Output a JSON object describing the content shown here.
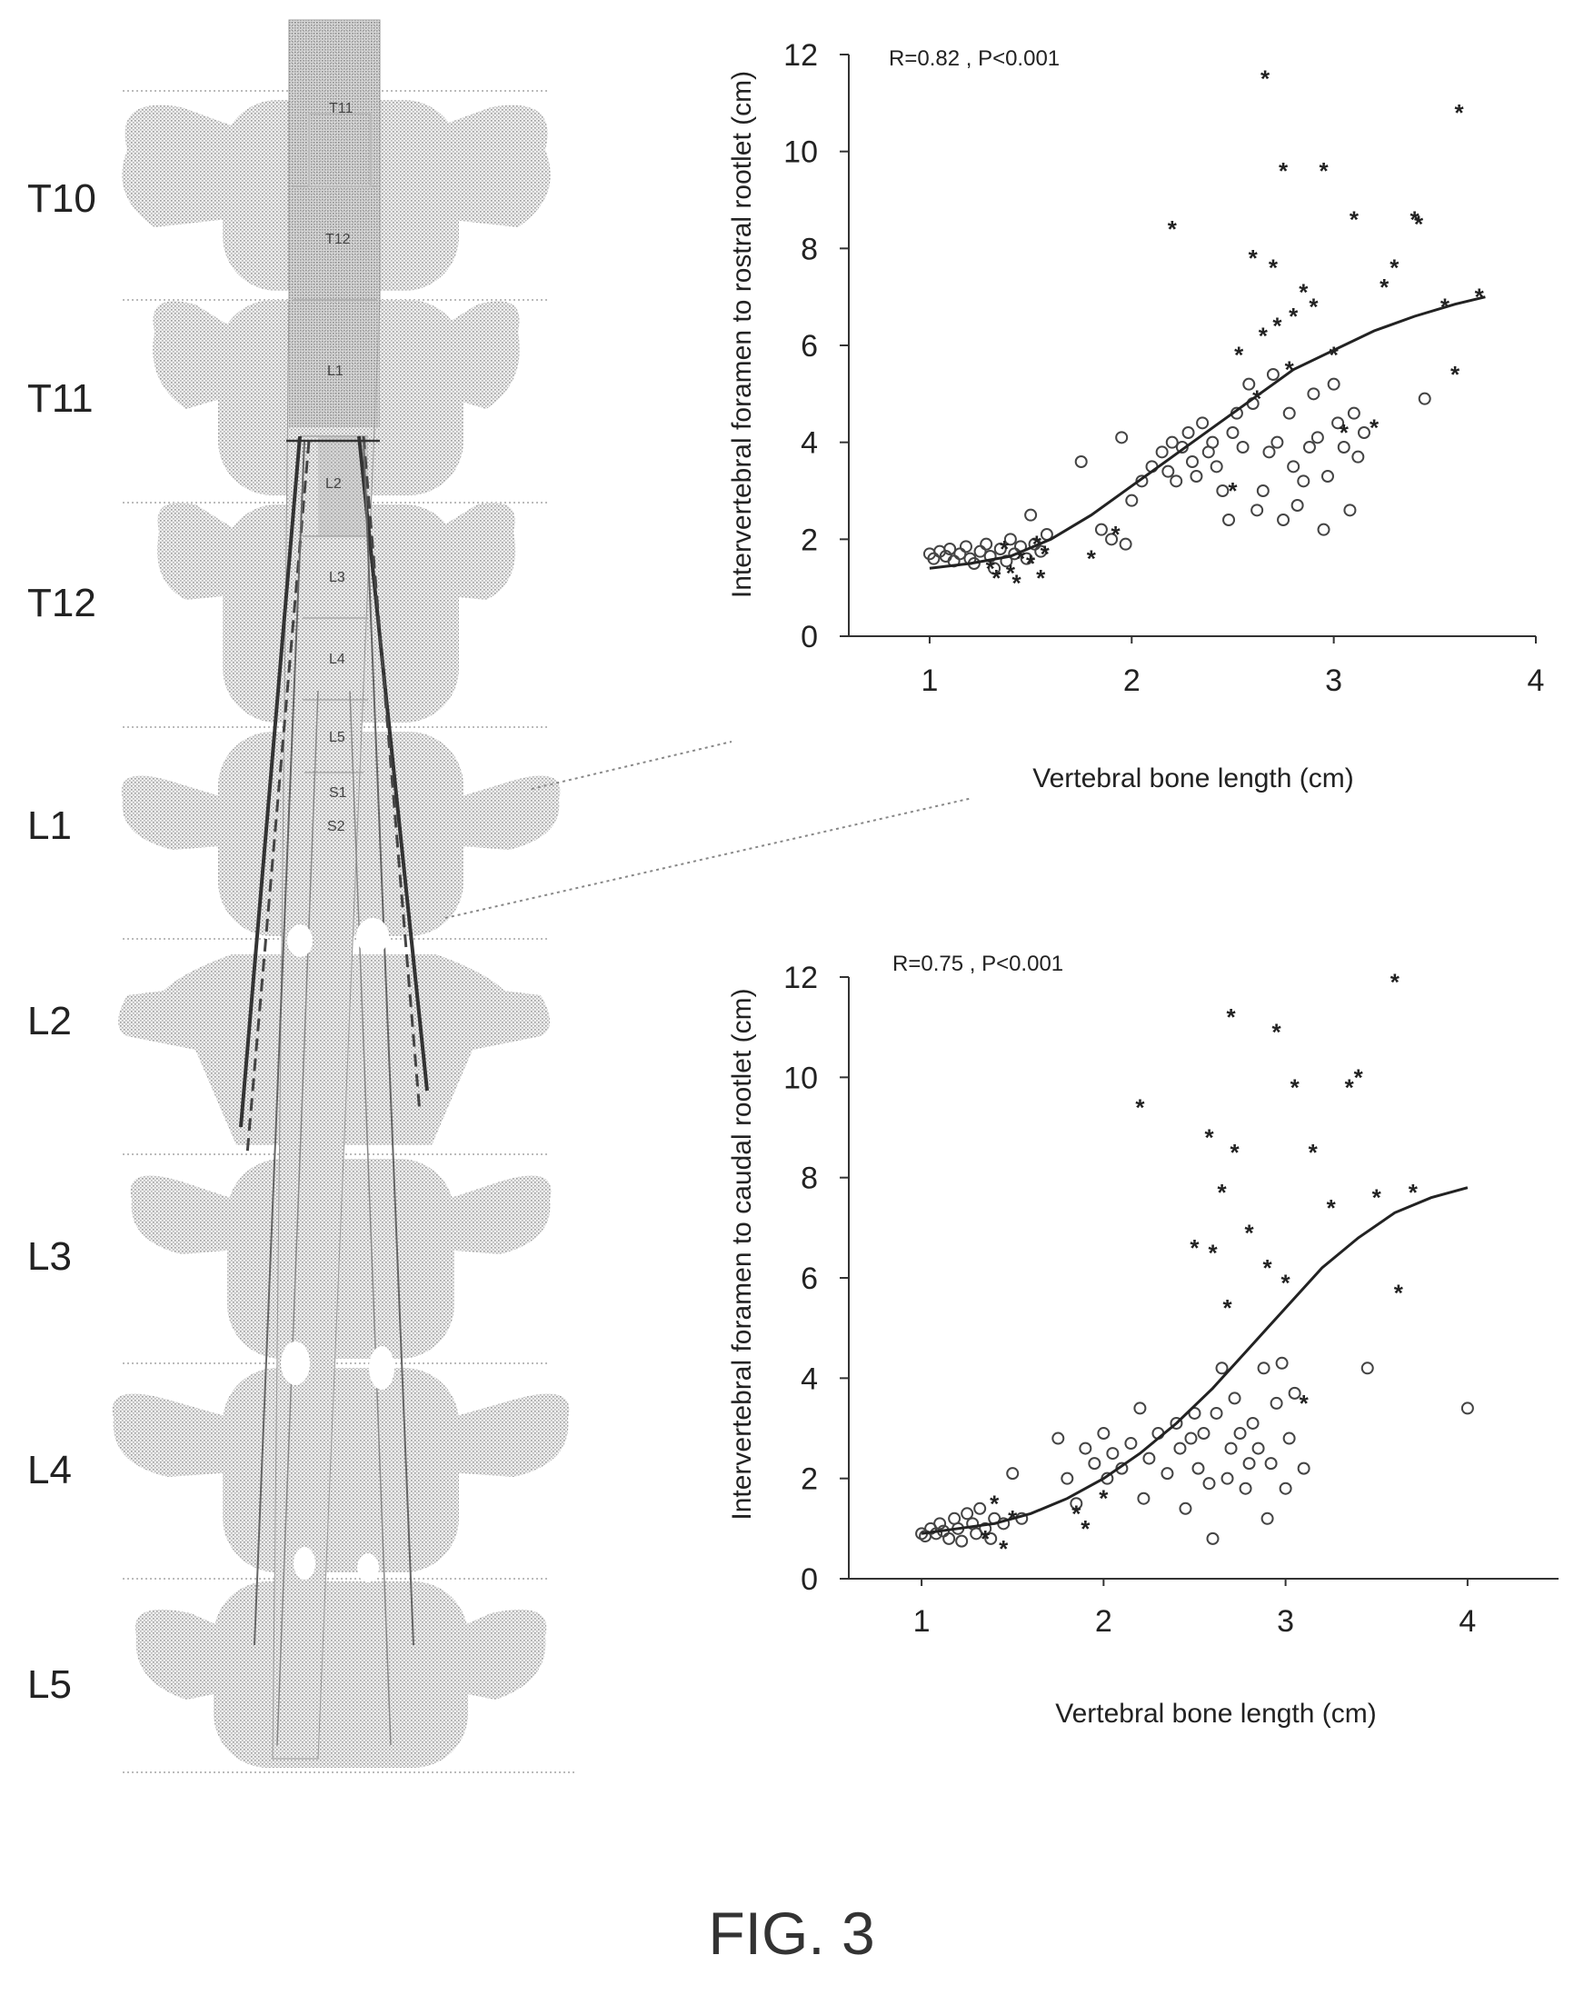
{
  "figure": {
    "caption": "FIG. 3"
  },
  "spine": {
    "vertebra_labels": [
      "T10",
      "T11",
      "T12",
      "L1",
      "L2",
      "L3",
      "L4",
      "L5"
    ],
    "cord_labels": [
      "T11",
      "T12",
      "L1",
      "L2",
      "L3",
      "L4",
      "L5",
      "S1",
      "S2"
    ]
  },
  "chart_data": [
    {
      "type": "scatter",
      "title": "",
      "annotation": "R=0.82 , P<0.001",
      "xlabel": "Vertebral bone length (cm)",
      "ylabel": "Intervertebral foramen to rostral rootlet (cm)",
      "xlim": [
        0.6,
        4.0
      ],
      "ylim": [
        0,
        12
      ],
      "xticks": [
        1,
        2,
        3,
        4
      ],
      "yticks": [
        0,
        2,
        4,
        6,
        8,
        10,
        12
      ],
      "grid": false,
      "legend": "none",
      "series": [
        {
          "marker": "open-circle",
          "points": [
            [
              1.0,
              1.7
            ],
            [
              1.02,
              1.6
            ],
            [
              1.05,
              1.75
            ],
            [
              1.08,
              1.65
            ],
            [
              1.1,
              1.8
            ],
            [
              1.12,
              1.55
            ],
            [
              1.15,
              1.7
            ],
            [
              1.18,
              1.85
            ],
            [
              1.2,
              1.6
            ],
            [
              1.22,
              1.5
            ],
            [
              1.25,
              1.75
            ],
            [
              1.28,
              1.9
            ],
            [
              1.3,
              1.65
            ],
            [
              1.32,
              1.4
            ],
            [
              1.35,
              1.8
            ],
            [
              1.38,
              1.55
            ],
            [
              1.4,
              2.0
            ],
            [
              1.42,
              1.7
            ],
            [
              1.45,
              1.85
            ],
            [
              1.48,
              1.6
            ],
            [
              1.5,
              2.5
            ],
            [
              1.52,
              1.9
            ],
            [
              1.55,
              1.75
            ],
            [
              1.58,
              2.1
            ],
            [
              1.75,
              3.6
            ],
            [
              1.85,
              2.2
            ],
            [
              1.9,
              2.0
            ],
            [
              1.95,
              4.1
            ],
            [
              1.97,
              1.9
            ],
            [
              2.0,
              2.8
            ],
            [
              2.05,
              3.2
            ],
            [
              2.1,
              3.5
            ],
            [
              2.15,
              3.8
            ],
            [
              2.18,
              3.4
            ],
            [
              2.2,
              4.0
            ],
            [
              2.22,
              3.2
            ],
            [
              2.25,
              3.9
            ],
            [
              2.28,
              4.2
            ],
            [
              2.3,
              3.6
            ],
            [
              2.32,
              3.3
            ],
            [
              2.35,
              4.4
            ],
            [
              2.38,
              3.8
            ],
            [
              2.4,
              4.0
            ],
            [
              2.42,
              3.5
            ],
            [
              2.45,
              3.0
            ],
            [
              2.48,
              2.4
            ],
            [
              2.5,
              4.2
            ],
            [
              2.52,
              4.6
            ],
            [
              2.55,
              3.9
            ],
            [
              2.58,
              5.2
            ],
            [
              2.6,
              4.8
            ],
            [
              2.62,
              2.6
            ],
            [
              2.65,
              3.0
            ],
            [
              2.68,
              3.8
            ],
            [
              2.7,
              5.4
            ],
            [
              2.72,
              4.0
            ],
            [
              2.75,
              2.4
            ],
            [
              2.78,
              4.6
            ],
            [
              2.8,
              3.5
            ],
            [
              2.82,
              2.7
            ],
            [
              2.85,
              3.2
            ],
            [
              2.88,
              3.9
            ],
            [
              2.9,
              5.0
            ],
            [
              2.92,
              4.1
            ],
            [
              2.95,
              2.2
            ],
            [
              2.97,
              3.3
            ],
            [
              3.0,
              5.2
            ],
            [
              3.02,
              4.4
            ],
            [
              3.05,
              3.9
            ],
            [
              3.08,
              2.6
            ],
            [
              3.1,
              4.6
            ],
            [
              3.12,
              3.7
            ],
            [
              3.15,
              4.2
            ],
            [
              3.45,
              4.9
            ]
          ]
        },
        {
          "marker": "filled-asterisk",
          "points": [
            [
              1.3,
              1.4
            ],
            [
              1.33,
              1.2
            ],
            [
              1.37,
              1.8
            ],
            [
              1.4,
              1.3
            ],
            [
              1.43,
              1.1
            ],
            [
              1.45,
              1.6
            ],
            [
              1.5,
              1.5
            ],
            [
              1.53,
              1.9
            ],
            [
              1.55,
              1.2
            ],
            [
              1.57,
              1.7
            ],
            [
              1.8,
              1.6
            ],
            [
              1.92,
              2.1
            ],
            [
              2.2,
              8.4
            ],
            [
              2.5,
              3.0
            ],
            [
              2.53,
              5.8
            ],
            [
              2.6,
              7.8
            ],
            [
              2.62,
              4.9
            ],
            [
              2.65,
              6.2
            ],
            [
              2.66,
              11.5
            ],
            [
              2.7,
              7.6
            ],
            [
              2.72,
              6.4
            ],
            [
              2.75,
              9.6
            ],
            [
              2.78,
              5.5
            ],
            [
              2.8,
              6.6
            ],
            [
              2.85,
              7.1
            ],
            [
              2.9,
              6.8
            ],
            [
              2.95,
              9.6
            ],
            [
              3.0,
              5.8
            ],
            [
              3.05,
              4.2
            ],
            [
              3.1,
              8.6
            ],
            [
              3.2,
              4.3
            ],
            [
              3.25,
              7.2
            ],
            [
              3.3,
              7.6
            ],
            [
              3.4,
              8.6
            ],
            [
              3.42,
              8.5
            ],
            [
              3.55,
              6.8
            ],
            [
              3.6,
              5.4
            ],
            [
              3.62,
              10.8
            ],
            [
              3.72,
              7.0
            ]
          ]
        }
      ],
      "fit": [
        [
          1.0,
          1.4
        ],
        [
          1.2,
          1.5
        ],
        [
          1.4,
          1.65
        ],
        [
          1.6,
          2.0
        ],
        [
          1.8,
          2.5
        ],
        [
          2.0,
          3.1
        ],
        [
          2.2,
          3.7
        ],
        [
          2.4,
          4.3
        ],
        [
          2.6,
          4.9
        ],
        [
          2.8,
          5.5
        ],
        [
          3.0,
          5.9
        ],
        [
          3.2,
          6.3
        ],
        [
          3.4,
          6.6
        ],
        [
          3.6,
          6.85
        ],
        [
          3.75,
          7.0
        ]
      ]
    },
    {
      "type": "scatter",
      "title": "",
      "annotation": "R=0.75 , P<0.001",
      "xlabel": "Vertebral bone length (cm)",
      "ylabel": "Intervertebral foramen to caudal rootlet (cm)",
      "xlim": [
        0.6,
        4.5
      ],
      "ylim": [
        0,
        12
      ],
      "xticks": [
        1,
        2,
        3,
        4
      ],
      "yticks": [
        0,
        2,
        4,
        6,
        8,
        10,
        12
      ],
      "grid": false,
      "legend": "none",
      "series": [
        {
          "marker": "open-circle",
          "points": [
            [
              1.0,
              0.9
            ],
            [
              1.02,
              0.85
            ],
            [
              1.05,
              1.0
            ],
            [
              1.08,
              0.9
            ],
            [
              1.1,
              1.1
            ],
            [
              1.12,
              0.95
            ],
            [
              1.15,
              0.8
            ],
            [
              1.18,
              1.2
            ],
            [
              1.2,
              1.0
            ],
            [
              1.22,
              0.75
            ],
            [
              1.25,
              1.3
            ],
            [
              1.28,
              1.1
            ],
            [
              1.3,
              0.9
            ],
            [
              1.32,
              1.4
            ],
            [
              1.35,
              1.0
            ],
            [
              1.38,
              0.8
            ],
            [
              1.4,
              1.2
            ],
            [
              1.45,
              1.1
            ],
            [
              1.5,
              2.1
            ],
            [
              1.55,
              1.2
            ],
            [
              1.75,
              2.8
            ],
            [
              1.8,
              2.0
            ],
            [
              1.85,
              1.5
            ],
            [
              1.9,
              2.6
            ],
            [
              1.95,
              2.3
            ],
            [
              2.0,
              2.9
            ],
            [
              2.02,
              2.0
            ],
            [
              2.05,
              2.5
            ],
            [
              2.1,
              2.2
            ],
            [
              2.15,
              2.7
            ],
            [
              2.2,
              3.4
            ],
            [
              2.22,
              1.6
            ],
            [
              2.25,
              2.4
            ],
            [
              2.3,
              2.9
            ],
            [
              2.35,
              2.1
            ],
            [
              2.4,
              3.1
            ],
            [
              2.42,
              2.6
            ],
            [
              2.45,
              1.4
            ],
            [
              2.48,
              2.8
            ],
            [
              2.5,
              3.3
            ],
            [
              2.52,
              2.2
            ],
            [
              2.55,
              2.9
            ],
            [
              2.58,
              1.9
            ],
            [
              2.6,
              0.8
            ],
            [
              2.62,
              3.3
            ],
            [
              2.65,
              4.2
            ],
            [
              2.68,
              2.0
            ],
            [
              2.7,
              2.6
            ],
            [
              2.72,
              3.6
            ],
            [
              2.75,
              2.9
            ],
            [
              2.78,
              1.8
            ],
            [
              2.8,
              2.3
            ],
            [
              2.82,
              3.1
            ],
            [
              2.85,
              2.6
            ],
            [
              2.88,
              4.2
            ],
            [
              2.9,
              1.2
            ],
            [
              2.92,
              2.3
            ],
            [
              2.95,
              3.5
            ],
            [
              2.98,
              4.3
            ],
            [
              3.0,
              1.8
            ],
            [
              3.02,
              2.8
            ],
            [
              3.05,
              3.7
            ],
            [
              3.1,
              2.2
            ],
            [
              3.45,
              4.2
            ],
            [
              4.0,
              3.4
            ]
          ]
        },
        {
          "marker": "filled-asterisk",
          "points": [
            [
              1.35,
              0.8
            ],
            [
              1.4,
              1.5
            ],
            [
              1.45,
              0.6
            ],
            [
              1.5,
              1.2
            ],
            [
              1.85,
              1.3
            ],
            [
              1.9,
              1.0
            ],
            [
              2.0,
              1.6
            ],
            [
              2.2,
              9.4
            ],
            [
              2.5,
              6.6
            ],
            [
              2.58,
              8.8
            ],
            [
              2.6,
              6.5
            ],
            [
              2.65,
              7.7
            ],
            [
              2.68,
              5.4
            ],
            [
              2.7,
              11.2
            ],
            [
              2.72,
              8.5
            ],
            [
              2.8,
              6.9
            ],
            [
              2.9,
              6.2
            ],
            [
              2.95,
              10.9
            ],
            [
              3.0,
              5.9
            ],
            [
              3.05,
              9.8
            ],
            [
              3.1,
              3.5
            ],
            [
              3.15,
              8.5
            ],
            [
              3.25,
              7.4
            ],
            [
              3.35,
              9.8
            ],
            [
              3.4,
              10.0
            ],
            [
              3.5,
              7.6
            ],
            [
              3.6,
              11.9
            ],
            [
              3.62,
              5.7
            ],
            [
              3.7,
              7.7
            ]
          ]
        }
      ],
      "fit": [
        [
          1.0,
          0.9
        ],
        [
          1.2,
          1.0
        ],
        [
          1.4,
          1.1
        ],
        [
          1.6,
          1.3
        ],
        [
          1.8,
          1.6
        ],
        [
          2.0,
          2.0
        ],
        [
          2.2,
          2.5
        ],
        [
          2.4,
          3.1
        ],
        [
          2.6,
          3.8
        ],
        [
          2.8,
          4.6
        ],
        [
          3.0,
          5.4
        ],
        [
          3.2,
          6.2
        ],
        [
          3.4,
          6.8
        ],
        [
          3.6,
          7.3
        ],
        [
          3.8,
          7.6
        ],
        [
          4.0,
          7.8
        ]
      ]
    }
  ]
}
